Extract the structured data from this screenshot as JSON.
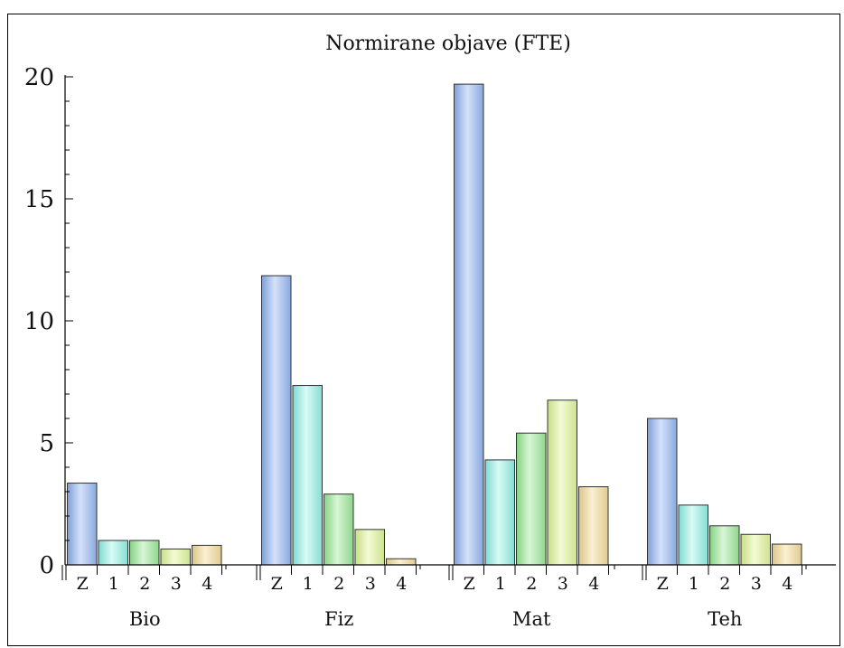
{
  "chart_data": {
    "type": "bar",
    "title": "Normirane objave (FTE)",
    "groups": [
      "Bio",
      "Fiz",
      "Mat",
      "Teh"
    ],
    "subcategories": [
      "Z",
      "1",
      "2",
      "3",
      "4"
    ],
    "values": [
      [
        3.35,
        1.0,
        1.0,
        0.65,
        0.8
      ],
      [
        11.85,
        7.35,
        2.9,
        1.45,
        0.25
      ],
      [
        19.7,
        4.3,
        5.4,
        6.75,
        3.2
      ],
      [
        6.0,
        2.45,
        1.6,
        1.25,
        0.85
      ]
    ],
    "ylim": [
      0,
      20
    ],
    "yticks": [
      0,
      5,
      10,
      15,
      20
    ],
    "ylabels": [
      "0",
      "5",
      "10",
      "15",
      "20"
    ],
    "grid": false,
    "colors": [
      "#aec4ec",
      "#b4f1ea",
      "#b4ebb2",
      "#e4f4b0",
      "#f0e2b0"
    ]
  }
}
